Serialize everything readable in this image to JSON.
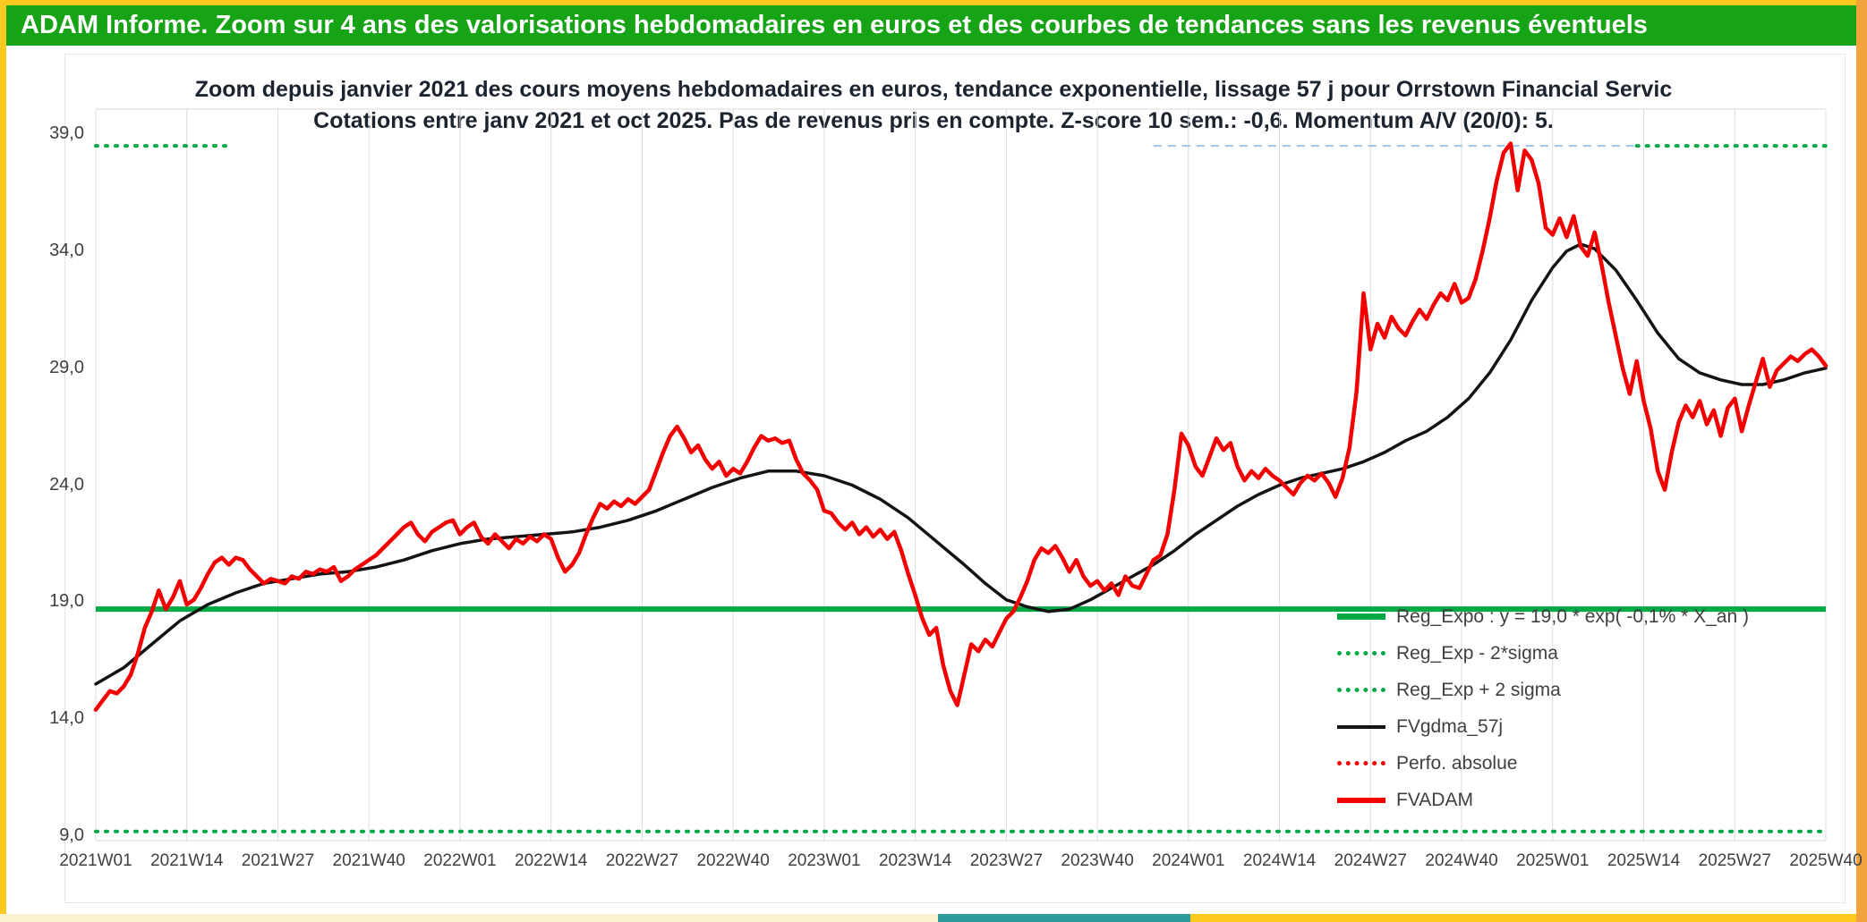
{
  "banner": {
    "title": "ADAM Informe. Zoom sur 4 ans des valorisations hebdomadaires en euros et des courbes de tendances sans les revenus éventuels",
    "bg": "#16A316",
    "fg": "#FFFFFF"
  },
  "chart": {
    "title_line1": "Zoom depuis janvier 2021 des cours moyens hebdomadaires en euros, tendance exponentielle, lissage 57 j pour Orrstown Financial Servic",
    "title_line2": "Cotations entre janv 2021 et oct 2025. Pas de revenus pris en compte. Z-score 10 sem.: -0,6. Momentum A/V (20/0): 5."
  },
  "legend": {
    "items": [
      {
        "label": "Reg_Expo : y = 19,0 * exp( -0,1% * X_an )",
        "style": "green-solid"
      },
      {
        "label": "Reg_Exp - 2*sigma",
        "style": "green-dotted"
      },
      {
        "label": "Reg_Exp + 2 sigma",
        "style": "green-dotted"
      },
      {
        "label": "FVgdma_57j",
        "style": "black-solid"
      },
      {
        "label": "Perfo. absolue",
        "style": "red-dotted"
      },
      {
        "label": "FVADAM",
        "style": "red-solid"
      }
    ]
  },
  "chart_data": {
    "type": "line",
    "title": "Zoom depuis janvier 2021 des cours moyens hebdomadaires en euros, tendance exponentielle, lissage 57 j pour Orrstown Financial Servic",
    "subtitle": "Cotations entre janv 2021 et oct 2025. Pas de revenus pris en compte. Z-score 10 sem.: -0,6. Momentum A/V (20/0): 5.",
    "x_unit": "ISO week",
    "x_range_weeks": [
      0,
      247
    ],
    "y_range": [
      9,
      39
    ],
    "x_axis": {
      "tick_labels": [
        "2021W01",
        "2021W14",
        "2021W27",
        "2021W40",
        "2022W01",
        "2022W14",
        "2022W27",
        "2022W40",
        "2023W01",
        "2023W14",
        "2023W27",
        "2023W40",
        "2024W01",
        "2024W14",
        "2024W27",
        "2024W40",
        "2025W01",
        "2025W14",
        "2025W27",
        "2025W40"
      ],
      "tick_weeks": [
        0,
        13,
        26,
        39,
        52,
        65,
        78,
        91,
        104,
        117,
        130,
        143,
        156,
        169,
        182,
        195,
        208,
        221,
        234,
        247
      ]
    },
    "y_axis": {
      "tick_labels": [
        "39,0",
        "34,0",
        "29,0",
        "24,0",
        "19,0",
        "14,0",
        "9,0"
      ],
      "tick_values": [
        39,
        34,
        29,
        24,
        19,
        14,
        9
      ]
    },
    "series": [
      {
        "name": "Reg_Expo",
        "type": "hline",
        "value": 18.7,
        "label_equation": "y = 19,0 * exp( -0,1% * X_an )",
        "color": "#00A846",
        "style": "solid-thick"
      },
      {
        "name": "Reg_Exp - 2*sigma",
        "type": "hline",
        "value": 9.2,
        "color": "#00A846",
        "style": "dotted",
        "segments_weeks": [
          [
            0,
            247
          ]
        ]
      },
      {
        "name": "Reg_Exp + 2 sigma",
        "type": "hline",
        "value": 38.5,
        "color": "#00A846",
        "style": "dotted",
        "segments_weeks": [
          [
            0,
            19
          ],
          [
            220,
            247
          ]
        ],
        "faint_segment_weeks": [
          151,
          220
        ],
        "faint_color": "#9DC3E6"
      },
      {
        "name": "FVgdma_57j",
        "type": "line",
        "color": "#141414",
        "width": 3.5,
        "points": [
          [
            0,
            15.5
          ],
          [
            4,
            16.2
          ],
          [
            8,
            17.2
          ],
          [
            12,
            18.2
          ],
          [
            16,
            18.9
          ],
          [
            20,
            19.4
          ],
          [
            24,
            19.8
          ],
          [
            28,
            20.0
          ],
          [
            32,
            20.2
          ],
          [
            36,
            20.3
          ],
          [
            40,
            20.5
          ],
          [
            44,
            20.8
          ],
          [
            48,
            21.2
          ],
          [
            52,
            21.5
          ],
          [
            56,
            21.7
          ],
          [
            60,
            21.8
          ],
          [
            64,
            21.9
          ],
          [
            68,
            22.0
          ],
          [
            72,
            22.2
          ],
          [
            76,
            22.5
          ],
          [
            80,
            22.9
          ],
          [
            84,
            23.4
          ],
          [
            88,
            23.9
          ],
          [
            92,
            24.3
          ],
          [
            96,
            24.6
          ],
          [
            100,
            24.6
          ],
          [
            104,
            24.4
          ],
          [
            108,
            24.0
          ],
          [
            112,
            23.4
          ],
          [
            116,
            22.6
          ],
          [
            120,
            21.6
          ],
          [
            124,
            20.6
          ],
          [
            127,
            19.8
          ],
          [
            130,
            19.1
          ],
          [
            133,
            18.8
          ],
          [
            136,
            18.6
          ],
          [
            139,
            18.7
          ],
          [
            142,
            19.1
          ],
          [
            145,
            19.6
          ],
          [
            148,
            20.1
          ],
          [
            151,
            20.6
          ],
          [
            154,
            21.2
          ],
          [
            157,
            21.9
          ],
          [
            160,
            22.5
          ],
          [
            163,
            23.1
          ],
          [
            166,
            23.6
          ],
          [
            169,
            24.0
          ],
          [
            172,
            24.3
          ],
          [
            175,
            24.5
          ],
          [
            178,
            24.7
          ],
          [
            181,
            25.0
          ],
          [
            184,
            25.4
          ],
          [
            187,
            25.9
          ],
          [
            190,
            26.3
          ],
          [
            193,
            26.9
          ],
          [
            196,
            27.7
          ],
          [
            199,
            28.8
          ],
          [
            202,
            30.2
          ],
          [
            205,
            31.9
          ],
          [
            208,
            33.3
          ],
          [
            210,
            34.0
          ],
          [
            212,
            34.3
          ],
          [
            214,
            34.1
          ],
          [
            217,
            33.2
          ],
          [
            220,
            31.9
          ],
          [
            223,
            30.5
          ],
          [
            226,
            29.4
          ],
          [
            229,
            28.8
          ],
          [
            232,
            28.5
          ],
          [
            235,
            28.3
          ],
          [
            238,
            28.3
          ],
          [
            241,
            28.5
          ],
          [
            244,
            28.8
          ],
          [
            247,
            29.0
          ]
        ]
      },
      {
        "name": "Perfo. absolue",
        "type": "line",
        "color": "#F40000",
        "style": "dotted",
        "note": "coincides with FVADAM (no income taken into account)",
        "points": []
      },
      {
        "name": "FVADAM",
        "type": "line",
        "color": "#F40000",
        "width": 4.5,
        "start_week": 0,
        "values_weekly": [
          14.4,
          14.8,
          15.2,
          15.1,
          15.4,
          15.9,
          16.8,
          17.9,
          18.6,
          19.5,
          18.7,
          19.2,
          19.9,
          18.9,
          19.1,
          19.6,
          20.2,
          20.7,
          20.9,
          20.6,
          20.9,
          20.8,
          20.4,
          20.1,
          19.8,
          20.0,
          19.9,
          19.8,
          20.1,
          20.0,
          20.3,
          20.2,
          20.4,
          20.3,
          20.5,
          19.9,
          20.1,
          20.4,
          20.6,
          20.8,
          21.0,
          21.3,
          21.6,
          21.9,
          22.2,
          22.4,
          21.9,
          21.6,
          22.0,
          22.2,
          22.4,
          22.5,
          21.9,
          22.2,
          22.4,
          21.8,
          21.5,
          21.9,
          21.6,
          21.3,
          21.7,
          21.5,
          21.8,
          21.6,
          21.9,
          21.7,
          20.9,
          20.3,
          20.6,
          21.1,
          21.9,
          22.6,
          23.2,
          23.0,
          23.3,
          23.1,
          23.4,
          23.2,
          23.5,
          23.8,
          24.6,
          25.4,
          26.1,
          26.5,
          26.0,
          25.4,
          25.7,
          25.1,
          24.7,
          25.0,
          24.4,
          24.7,
          24.5,
          25.0,
          25.6,
          26.1,
          25.9,
          26.0,
          25.8,
          25.9,
          25.1,
          24.5,
          24.2,
          23.8,
          22.9,
          22.8,
          22.4,
          22.1,
          22.4,
          21.9,
          22.2,
          21.8,
          22.1,
          21.7,
          22.0,
          21.2,
          20.2,
          19.3,
          18.3,
          17.6,
          17.9,
          16.3,
          15.2,
          14.6,
          15.9,
          17.2,
          16.9,
          17.4,
          17.1,
          17.7,
          18.3,
          18.6,
          19.2,
          19.9,
          20.8,
          21.3,
          21.1,
          21.4,
          20.9,
          20.3,
          20.8,
          20.1,
          19.7,
          19.9,
          19.5,
          19.8,
          19.3,
          20.1,
          19.7,
          19.6,
          20.2,
          20.8,
          21.0,
          21.9,
          23.8,
          26.2,
          25.7,
          24.8,
          24.4,
          25.2,
          26.0,
          25.5,
          25.8,
          24.8,
          24.2,
          24.6,
          24.3,
          24.7,
          24.4,
          24.2,
          23.9,
          23.6,
          24.1,
          24.4,
          24.2,
          24.5,
          24.1,
          23.5,
          24.3,
          25.6,
          28.0,
          32.2,
          29.8,
          30.9,
          30.3,
          31.2,
          30.7,
          30.4,
          31.0,
          31.5,
          31.1,
          31.7,
          32.2,
          31.9,
          32.6,
          31.8,
          32.0,
          32.8,
          34.0,
          35.4,
          37.0,
          38.2,
          38.6,
          36.6,
          38.3,
          37.9,
          36.9,
          35.0,
          34.7,
          35.4,
          34.6,
          35.5,
          34.2,
          33.8,
          34.8,
          33.4,
          31.8,
          30.4,
          29.0,
          27.9,
          29.3,
          27.6,
          26.4,
          24.6,
          23.8,
          25.4,
          26.7,
          27.4,
          26.9,
          27.6,
          26.6,
          27.2,
          26.1,
          27.3,
          27.7,
          26.3,
          27.4,
          28.4,
          29.4,
          28.2,
          28.9,
          29.2,
          29.5,
          29.3,
          29.6,
          29.8,
          29.5,
          29.1
        ]
      }
    ]
  }
}
